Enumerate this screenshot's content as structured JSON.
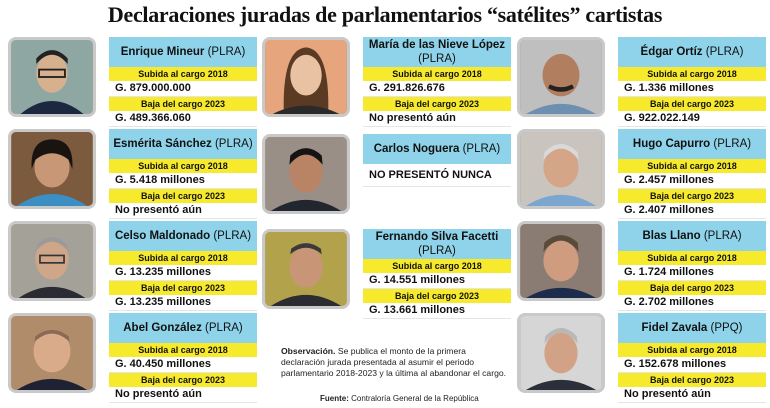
{
  "title": "Declaraciones juradas de parlamentarios “satélites” cartistas",
  "labels": {
    "subida": "Subida al cargo 2018",
    "baja": "Baja del cargo 2023"
  },
  "people": [
    {
      "name": "Enrique Mineur",
      "party": "(PLRA)",
      "v2018": "G. 879.000.000",
      "v2023": "G. 489.366.060"
    },
    {
      "name": "Esmérita Sánchez",
      "party": "(PLRA)",
      "v2018": "G. 5.418 millones",
      "v2023": "No presentó aún"
    },
    {
      "name": "Celso Maldonado",
      "party": "(PLRA)",
      "v2018": "G. 13.235 millones",
      "v2023": "G. 13.235 millones"
    },
    {
      "name": "Abel González",
      "party": "(PLRA)",
      "v2018": "G. 40.450 millones",
      "v2023": "No presentó aún"
    },
    {
      "name": "María de las Nieve López",
      "party": "(PLRA)",
      "v2018": "G. 291.826.676",
      "v2023": "No presentó aún"
    },
    {
      "name": "Carlos Noguera",
      "party": "(PLRA)",
      "v2018": "NO PRESENTÓ NUNCA",
      "v2023": ""
    },
    {
      "name": "Fernando Silva Facetti",
      "party": "(PLRA)",
      "v2018": "G. 14.551 millones",
      "v2023": "G. 13.661 millones"
    },
    {
      "name": "Édgar Ortíz",
      "party": "(PLRA)",
      "v2018": "G. 1.336 millones",
      "v2023": "G. 922.022.149"
    },
    {
      "name": "Hugo Capurro",
      "party": "(PLRA)",
      "v2018": "G. 2.457 millones",
      "v2023": "G. 2.407 millones"
    },
    {
      "name": "Blas Llano",
      "party": "(PLRA)",
      "v2018": "G. 1.724 millones",
      "v2023": "G. 2.702 millones"
    },
    {
      "name": "Fidel Zavala",
      "party": "(PPQ)",
      "v2018": "G. 152.678 millones",
      "v2023": "No presentó aún"
    }
  ],
  "note": {
    "label": "Observación.",
    "text": "Se publica el monto de la primera declaración jurada presentada al asumir el periodo parlamentario 2018-2023 y la última al abandonar el cargo."
  },
  "source": {
    "label": "Fuente:",
    "text": "Contraloría General de la República"
  },
  "colors": {
    "name_bg": "#8ed3ea",
    "label_bg": "#f7ea2d"
  }
}
